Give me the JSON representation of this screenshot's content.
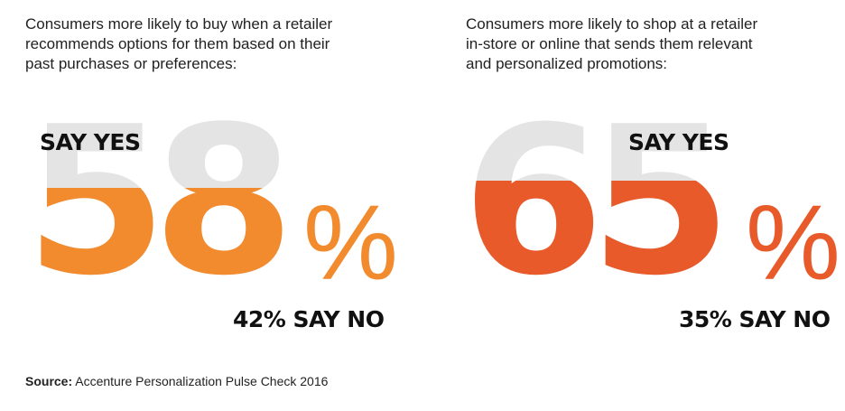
{
  "colors": {
    "left_accent": "#f28a2e",
    "right_accent": "#e85a2a",
    "base_gray": "#e4e4e4",
    "text": "#111111"
  },
  "panels": [
    {
      "caption_lines": [
        "Consumers more likely to buy when a retailer",
        "recommends options for them based on their",
        "past purchases or preferences:"
      ],
      "big_number": "58",
      "fill_fraction": 0.58,
      "percent_sign": "%",
      "yes_label": "SAY YES",
      "no_label": "42% SAY NO"
    },
    {
      "caption_lines": [
        "Consumers more likely to shop at a retailer",
        "in-store or online that sends them relevant",
        "and personalized promotions:"
      ],
      "big_number": "65",
      "fill_fraction": 0.65,
      "percent_sign": "%",
      "yes_label": "SAY YES",
      "no_label": "35% SAY NO"
    }
  ],
  "source": {
    "label": "Source:",
    "text": " Accenture Personalization Pulse Check 2016"
  }
}
